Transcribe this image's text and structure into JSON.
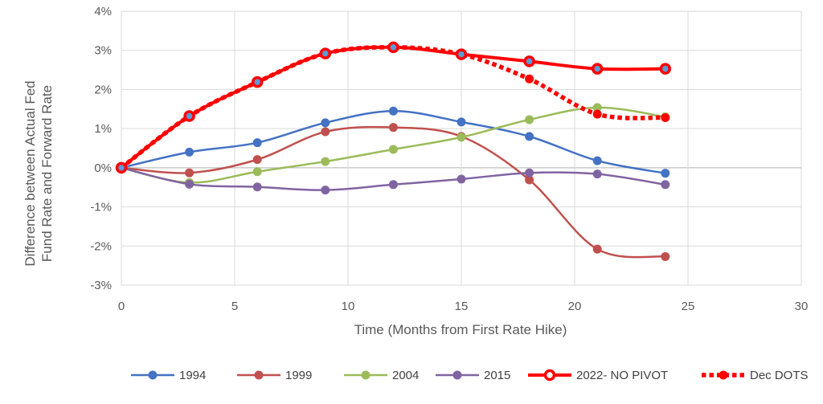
{
  "chart_data": {
    "type": "line",
    "xlabel": "Time (Months from First Rate Hike)",
    "ylabel_lines": [
      "Difference between Actual Fed",
      "Fund Rate and Forward Rate"
    ],
    "xlim": [
      0,
      30
    ],
    "ylim": [
      -3,
      4
    ],
    "x_ticks": [
      0,
      5,
      10,
      15,
      20,
      25,
      30
    ],
    "y_ticks": [
      -3,
      -2,
      -1,
      0,
      1,
      2,
      3,
      4
    ],
    "y_tick_labels": [
      "-3%",
      "-2%",
      "-1%",
      "0%",
      "1%",
      "2%",
      "3%",
      "4%"
    ],
    "grid": true,
    "legend_position": "bottom",
    "x": [
      0,
      3,
      6,
      9,
      12,
      15,
      18,
      21,
      24
    ],
    "series": [
      {
        "name": "1994",
        "color": "#4472c4",
        "style": "smooth-marker",
        "values": [
          0,
          0.4,
          0.64,
          1.15,
          1.45,
          1.17,
          0.8,
          0.18,
          -0.14
        ]
      },
      {
        "name": "1999",
        "color": "#c0504d",
        "style": "smooth-marker",
        "values": [
          0,
          -0.13,
          0.21,
          0.92,
          1.03,
          0.8,
          -0.31,
          -2.08,
          -2.27
        ]
      },
      {
        "name": "2004",
        "color": "#9bbb59",
        "style": "smooth-marker",
        "values": [
          0,
          -0.38,
          -0.1,
          0.16,
          0.47,
          0.78,
          1.23,
          1.54,
          1.3
        ]
      },
      {
        "name": "2015",
        "color": "#8064a2",
        "style": "smooth-marker",
        "values": [
          0,
          -0.42,
          -0.49,
          -0.57,
          -0.43,
          -0.29,
          -0.13,
          -0.16,
          -0.43
        ]
      },
      {
        "name": "2022- NO PIVOT",
        "color": "#ff0000",
        "style": "bold-hollow-marker",
        "values": [
          0,
          1.32,
          2.19,
          2.92,
          3.08,
          2.9,
          2.72,
          2.53,
          2.53
        ]
      },
      {
        "name": "Dec DOTS",
        "color": "#ff0000",
        "style": "dotted-marker",
        "values": [
          0,
          1.32,
          2.19,
          2.92,
          3.08,
          2.9,
          2.27,
          1.37,
          1.28
        ]
      }
    ]
  }
}
